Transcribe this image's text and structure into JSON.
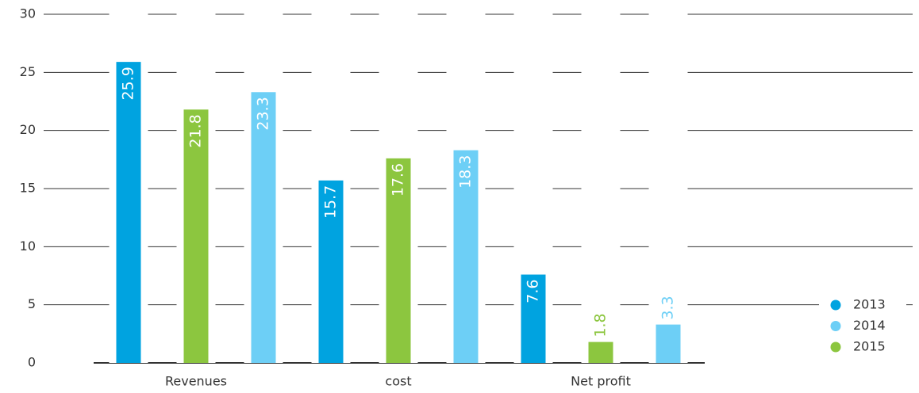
{
  "chart_data": {
    "type": "bar",
    "categories": [
      "Revenues",
      "cost",
      "Net profit"
    ],
    "series": [
      {
        "name": "2013",
        "color": "#00a3e0",
        "values": [
          25.9,
          15.7,
          7.6
        ]
      },
      {
        "name": "2014",
        "color": "#6dcff6",
        "values": [
          23.3,
          18.3,
          3.3
        ]
      },
      {
        "name": "2015",
        "color": "#8cc63f",
        "values": [
          21.8,
          17.6,
          1.8
        ]
      }
    ],
    "ylim": [
      0,
      30
    ],
    "yticks": [
      0,
      5,
      10,
      15,
      20,
      25,
      30
    ],
    "grid": true,
    "legend": "right"
  }
}
